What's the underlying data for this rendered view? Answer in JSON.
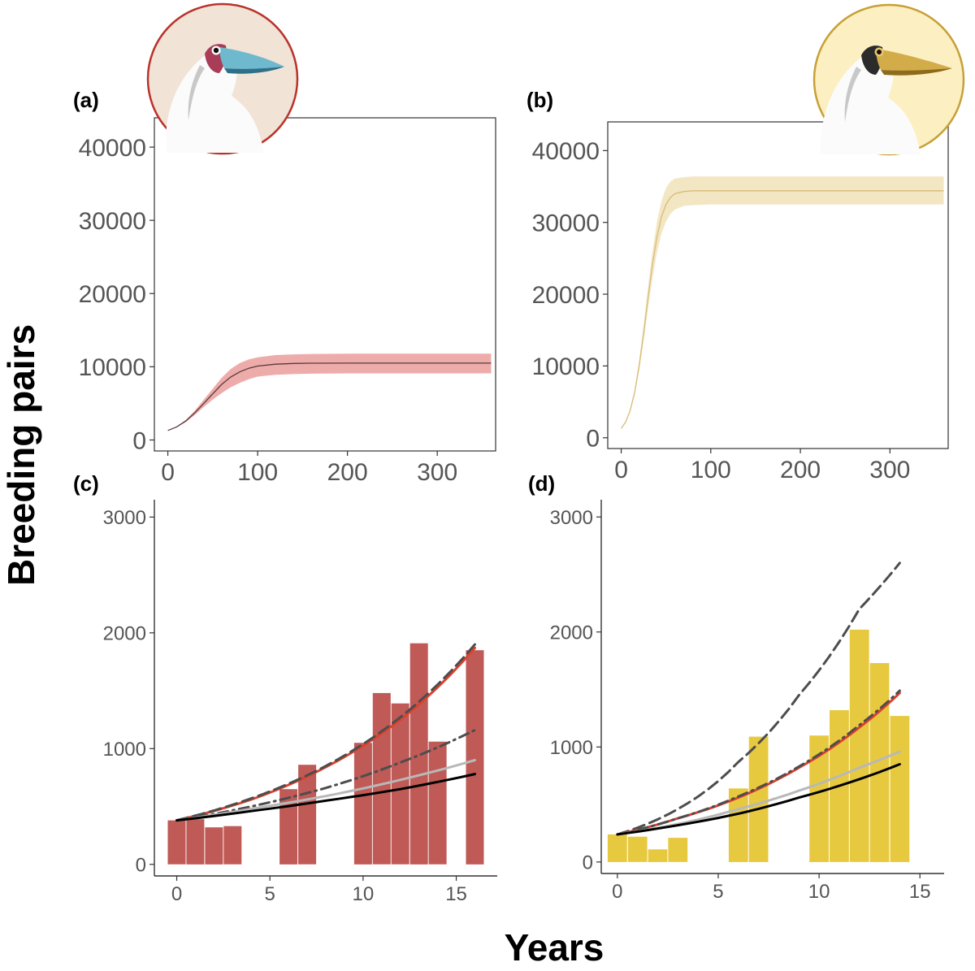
{
  "figure": {
    "ylabel": "Breeding pairs",
    "xlabel": "Years"
  },
  "chart_data": [
    {
      "panel": "(a)",
      "type": "line",
      "xlim": [
        -15,
        365
      ],
      "ylim": [
        -1500,
        44000
      ],
      "x_ticks": [
        "0",
        "100",
        "200",
        "300"
      ],
      "y_ticks": [
        "0",
        "10000",
        "20000",
        "30000",
        "40000"
      ],
      "color": "#c94a4a",
      "band_color": "#ea9d9b",
      "grid": false,
      "icon": "red-footed-booby-head-icon",
      "series": [
        {
          "x": [
            0,
            10,
            20,
            30,
            40,
            50,
            60,
            70,
            80,
            90,
            100,
            120,
            140,
            160,
            200,
            250,
            300,
            360
          ],
          "y": [
            1300,
            1800,
            2600,
            3700,
            5000,
            6300,
            7600,
            8600,
            9300,
            9800,
            10100,
            10350,
            10450,
            10480,
            10500,
            10500,
            10500,
            10500
          ],
          "lower": [
            1300,
            1750,
            2450,
            3400,
            4500,
            5500,
            6400,
            7200,
            7800,
            8300,
            8650,
            8900,
            9000,
            9050,
            9100,
            9100,
            9100,
            9100
          ],
          "upper": [
            1300,
            1850,
            2750,
            4000,
            5500,
            7000,
            8500,
            9700,
            10500,
            11000,
            11300,
            11600,
            11700,
            11750,
            11800,
            11800,
            11800,
            11800
          ]
        }
      ]
    },
    {
      "panel": "(b)",
      "type": "line",
      "xlim": [
        -15,
        365
      ],
      "ylim": [
        -1500,
        44000
      ],
      "x_ticks": [
        "0",
        "100",
        "200",
        "300"
      ],
      "y_ticks": [
        "0",
        "10000",
        "20000",
        "30000",
        "40000"
      ],
      "color": "#d9bb7a",
      "band_color": "#f1e2b8",
      "grid": false,
      "icon": "masked-booby-head-icon",
      "series": [
        {
          "x": [
            0,
            5,
            10,
            15,
            20,
            25,
            30,
            35,
            40,
            45,
            50,
            55,
            60,
            70,
            80,
            100,
            150,
            200,
            300,
            360
          ],
          "y": [
            1300,
            2200,
            3800,
            6300,
            10000,
            14500,
            19500,
            24200,
            28000,
            30800,
            32500,
            33500,
            34000,
            34300,
            34400,
            34400,
            34400,
            34400,
            34400,
            34400
          ],
          "lower": [
            1300,
            2150,
            3600,
            5900,
            9300,
            13400,
            18000,
            22300,
            25800,
            28500,
            30100,
            31200,
            31800,
            32300,
            32400,
            32500,
            32500,
            32500,
            32500,
            32500
          ],
          "upper": [
            1300,
            2250,
            4000,
            6700,
            10700,
            15600,
            21000,
            26000,
            30100,
            33000,
            34800,
            35700,
            36100,
            36300,
            36400,
            36400,
            36400,
            36400,
            36400,
            36400
          ]
        }
      ]
    },
    {
      "panel": "(c)",
      "type": "bar",
      "xlim": [
        -1.2,
        17.2
      ],
      "ylim": [
        -100,
        3150
      ],
      "x_ticks": [
        "0",
        "5",
        "10",
        "15"
      ],
      "y_ticks": [
        "0",
        "1000",
        "2000",
        "3000"
      ],
      "bar_color": "#bf5a56",
      "grid": false,
      "bars": {
        "x": [
          0,
          1,
          2,
          3,
          6,
          7,
          10,
          11,
          12,
          13,
          14,
          16
        ],
        "values": [
          380,
          390,
          320,
          330,
          650,
          860,
          1050,
          1480,
          1390,
          1910,
          1060,
          1850
        ]
      },
      "series": [
        {
          "style": "red",
          "color": "#e0402d",
          "x": [
            0,
            4,
            8,
            12,
            16
          ],
          "y": [
            380,
            560,
            840,
            1250,
            1870
          ]
        },
        {
          "style": "dark-dashed",
          "color": "#4d4d4d",
          "x": [
            0,
            4,
            8,
            12,
            16
          ],
          "y": [
            380,
            570,
            850,
            1270,
            1900
          ]
        },
        {
          "style": "dark-dashdot",
          "color": "#4d4d4d",
          "x": [
            0,
            4,
            8,
            12,
            16
          ],
          "y": [
            380,
            500,
            660,
            880,
            1160
          ]
        },
        {
          "style": "grey",
          "color": "#b8b8b8",
          "x": [
            0,
            4,
            8,
            12,
            16
          ],
          "y": [
            380,
            480,
            590,
            730,
            900
          ]
        },
        {
          "style": "black",
          "color": "#000000",
          "x": [
            0,
            4,
            8,
            12,
            16
          ],
          "y": [
            380,
            460,
            550,
            650,
            780
          ]
        }
      ]
    },
    {
      "panel": "(d)",
      "type": "bar",
      "xlim": [
        -0.8,
        16.2
      ],
      "ylim": [
        -100,
        3150
      ],
      "x_ticks": [
        "0",
        "5",
        "10",
        "15"
      ],
      "y_ticks": [
        "0",
        "1000",
        "2000",
        "3000"
      ],
      "bar_color": "#e7c93f",
      "grid": false,
      "bars": {
        "x": [
          0,
          1,
          2,
          3,
          6,
          7,
          10,
          11,
          12,
          13,
          14
        ],
        "values": [
          240,
          220,
          110,
          210,
          640,
          1090,
          1100,
          1320,
          2020,
          1730,
          1270
        ]
      },
      "series": [
        {
          "style": "dark-dashed",
          "color": "#4d4d4d",
          "x": [
            0,
            3,
            6,
            9,
            12,
            14
          ],
          "y": [
            240,
            460,
            870,
            1450,
            2200,
            2600
          ]
        },
        {
          "style": "red",
          "color": "#e0402d",
          "x": [
            0,
            3,
            6,
            9,
            12,
            14
          ],
          "y": [
            240,
            380,
            560,
            820,
            1170,
            1470
          ]
        },
        {
          "style": "dark-dashdot",
          "color": "#4d4d4d",
          "x": [
            0,
            3,
            6,
            9,
            12,
            14
          ],
          "y": [
            240,
            380,
            570,
            830,
            1190,
            1490
          ]
        },
        {
          "style": "grey",
          "color": "#b8b8b8",
          "x": [
            0,
            3,
            6,
            9,
            12,
            14
          ],
          "y": [
            240,
            330,
            460,
            620,
            820,
            960
          ]
        },
        {
          "style": "black",
          "color": "#000000",
          "x": [
            0,
            3,
            6,
            9,
            12,
            14
          ],
          "y": [
            240,
            320,
            420,
            560,
            720,
            850
          ]
        }
      ]
    }
  ]
}
